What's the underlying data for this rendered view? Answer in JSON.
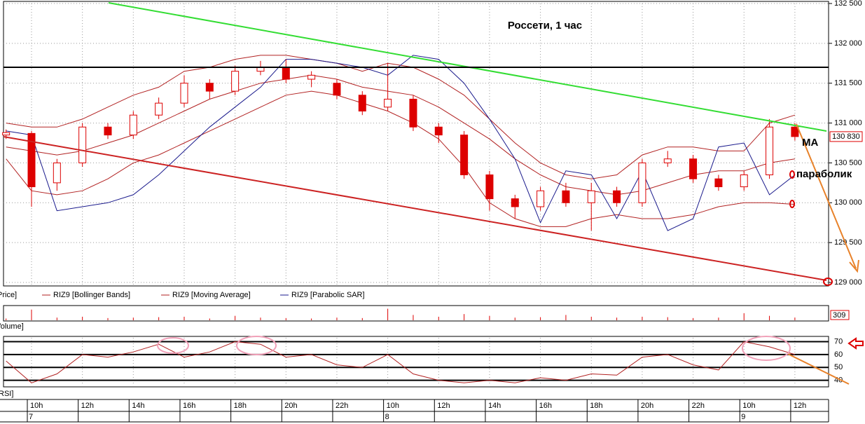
{
  "chart_data": {
    "type": "candlestick",
    "title": "Россети,  1 час",
    "categories": [
      null,
      "10h",
      null,
      "12h",
      null,
      "14h",
      null,
      "16h",
      null,
      "18h",
      null,
      "20h",
      null,
      "22h",
      null,
      "10h",
      null,
      "12h",
      null,
      "14h",
      null,
      "16h",
      null,
      "18h",
      null,
      "20h",
      null,
      "22h",
      null,
      "10h",
      null,
      "12h"
    ],
    "dates": [
      null,
      "7",
      null,
      null,
      null,
      null,
      null,
      null,
      null,
      null,
      null,
      null,
      null,
      null,
      null,
      "8",
      null,
      null,
      null,
      null,
      null,
      null,
      null,
      null,
      null,
      null,
      null,
      null,
      null,
      "9",
      null,
      null
    ],
    "candles": {
      "name": "Price]",
      "color": "#dd0000",
      "open": [
        130850,
        130870,
        130250,
        130500,
        130950,
        130850,
        131100,
        131250,
        131500,
        131400,
        131650,
        131700,
        131550,
        131500,
        131350,
        131200,
        131300,
        130950,
        130850,
        130350,
        130050,
        129950,
        130150,
        130000,
        130150,
        130000,
        130500,
        130550,
        130300,
        130200,
        130350,
        130950
      ],
      "high": [
        130920,
        130900,
        130550,
        131000,
        131000,
        131150,
        131320,
        131600,
        131550,
        131720,
        131780,
        131800,
        131650,
        131550,
        131400,
        131750,
        131350,
        131000,
        130900,
        130400,
        130100,
        130200,
        130250,
        130250,
        130200,
        130550,
        130650,
        130600,
        130350,
        130400,
        131050,
        131000
      ],
      "low": [
        130800,
        129950,
        130150,
        130450,
        130800,
        130800,
        131050,
        131200,
        131300,
        131350,
        131600,
        131500,
        131450,
        131300,
        131100,
        131150,
        130900,
        130750,
        130300,
        129900,
        129800,
        129900,
        129950,
        129650,
        129950,
        129950,
        130450,
        130250,
        130150,
        130150,
        130300,
        130780
      ],
      "close": [
        130880,
        130200,
        130500,
        130950,
        130850,
        131100,
        131250,
        131500,
        131400,
        131650,
        131700,
        131550,
        131600,
        131350,
        131150,
        131300,
        130950,
        130850,
        130350,
        130050,
        129950,
        130150,
        130000,
        130150,
        130000,
        130500,
        130550,
        130300,
        130200,
        130350,
        130950,
        130830
      ]
    },
    "series": [
      {
        "name": "RIZ9 [Bollinger Bands]",
        "color": "#b22222",
        "upper": [
          131000,
          130950,
          130950,
          131050,
          131200,
          131350,
          131450,
          131650,
          131700,
          131800,
          131850,
          131850,
          131800,
          131750,
          131650,
          131750,
          131700,
          131550,
          131350,
          131050,
          130750,
          130500,
          130350,
          130300,
          130350,
          130600,
          130700,
          130700,
          130650,
          130650,
          131000,
          131100
        ],
        "lower": [
          130550,
          130150,
          130100,
          130150,
          130300,
          130500,
          130600,
          130750,
          130900,
          131050,
          131200,
          131350,
          131400,
          131350,
          131250,
          131150,
          131000,
          130800,
          130450,
          130000,
          129800,
          129700,
          129700,
          129800,
          129850,
          129800,
          129800,
          129850,
          129950,
          130000,
          130000,
          129980
        ]
      },
      {
        "name": "RIZ9 [Moving Average]",
        "color": "#b22222",
        "values": [
          130700,
          130650,
          130600,
          130650,
          130750,
          130850,
          131000,
          131150,
          131300,
          131400,
          131500,
          131550,
          131600,
          131550,
          131450,
          131400,
          131350,
          131200,
          131000,
          130800,
          130550,
          130350,
          130200,
          130150,
          130100,
          130150,
          130250,
          130350,
          130400,
          130400,
          130500,
          130550
        ]
      },
      {
        "name": "RIZ9 [Parabolic SAR]",
        "color": "#1a1a8c",
        "values": [
          130900,
          130850,
          129900,
          129950,
          130000,
          130100,
          130350,
          130650,
          130950,
          131200,
          131450,
          131800,
          131800,
          131750,
          131700,
          131600,
          131850,
          131800,
          131500,
          131050,
          130550,
          129750,
          130400,
          130350,
          129800,
          130400,
          129650,
          129800,
          130700,
          130750,
          130100,
          130350
        ]
      }
    ],
    "ylim": [
      129000,
      132500
    ],
    "yticks": [
      {
        "value": 132500,
        "label": "132 500"
      },
      {
        "value": 132000,
        "label": "132 000"
      },
      {
        "value": 131500,
        "label": "131 500"
      },
      {
        "value": 131000,
        "label": "131 000"
      },
      {
        "value": 130500,
        "label": "130 500"
      },
      {
        "value": 130000,
        "label": "130 000"
      },
      {
        "value": 129500,
        "label": "129 500"
      },
      {
        "value": 129000,
        "label": "129 000"
      }
    ],
    "last_price": {
      "value": 130830,
      "label": "130 830"
    },
    "grid": true,
    "annotations": [
      "MA",
      "параболик"
    ],
    "volume": {
      "name": "Volume]",
      "color": "#dd0000",
      "ylim": [
        0,
        1500
      ],
      "values": [
        200,
        1200,
        300,
        400,
        250,
        300,
        350,
        400,
        200,
        500,
        300,
        250,
        200,
        300,
        250,
        1300,
        600,
        400,
        700,
        500,
        300,
        350,
        600,
        400,
        300,
        400,
        350,
        250,
        300,
        800,
        500,
        309
      ]
    },
    "rsi": {
      "name": "RSI]",
      "color": "#b22222",
      "ylim": [
        36,
        73
      ],
      "yticks": [
        70,
        60,
        50,
        40
      ],
      "values": [
        55,
        38,
        45,
        60,
        58,
        62,
        68,
        58,
        62,
        70,
        68,
        58,
        60,
        52,
        50,
        60,
        45,
        40,
        38,
        40,
        38,
        42,
        40,
        45,
        44,
        58,
        60,
        52,
        48,
        70,
        66,
        60
      ]
    }
  }
}
